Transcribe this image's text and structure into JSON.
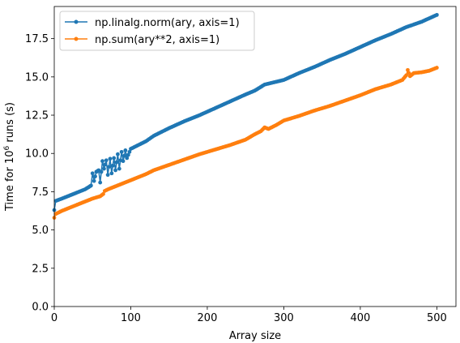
{
  "chart_data": {
    "type": "line",
    "xlabel": "Array size",
    "ylabel_main": "Time for 10",
    "ylabel_sup": "6",
    "ylabel_rest": " runs (s)",
    "xlim": [
      0,
      525
    ],
    "ylim": [
      0.0,
      19.6
    ],
    "xticks": [
      0,
      100,
      200,
      300,
      400,
      500
    ],
    "yticks": [
      0.0,
      2.5,
      5.0,
      7.5,
      10.0,
      12.5,
      15.0,
      17.5
    ],
    "ytick_labels": [
      "0.0",
      "2.5",
      "5.0",
      "7.5",
      "10.0",
      "12.5",
      "15.0",
      "17.5"
    ],
    "legend_position": "upper-left",
    "series": [
      {
        "name": "np.linalg.norm(ary, axis=1)",
        "color": "#1f77b4",
        "x": [
          0,
          2,
          10,
          20,
          30,
          40,
          45,
          48,
          50,
          52,
          55,
          58,
          60,
          63,
          65,
          68,
          70,
          73,
          75,
          78,
          80,
          83,
          85,
          88,
          90,
          93,
          95,
          100,
          110,
          120,
          130,
          140,
          150,
          170,
          190,
          210,
          230,
          250,
          262,
          275,
          300,
          320,
          340,
          360,
          380,
          400,
          420,
          440,
          460,
          480,
          500
        ],
        "y": [
          6.3,
          6.9,
          7.05,
          7.25,
          7.45,
          7.65,
          7.8,
          7.9,
          8.7,
          8.2,
          8.8,
          8.9,
          8.1,
          9.5,
          9.0,
          9.55,
          8.6,
          9.65,
          8.7,
          9.7,
          8.9,
          9.95,
          9.0,
          10.1,
          9.5,
          10.2,
          9.7,
          10.3,
          10.55,
          10.8,
          11.15,
          11.4,
          11.65,
          12.1,
          12.5,
          12.95,
          13.4,
          13.85,
          14.1,
          14.5,
          14.8,
          15.25,
          15.65,
          16.1,
          16.5,
          16.95,
          17.4,
          17.8,
          18.25,
          18.6,
          19.05
        ]
      },
      {
        "name": "np.sum(ary**2, axis=1)",
        "color": "#ff7f0e",
        "x": [
          0,
          2,
          10,
          20,
          30,
          40,
          50,
          60,
          64,
          66,
          70,
          80,
          90,
          100,
          110,
          120,
          130,
          150,
          170,
          190,
          210,
          230,
          250,
          262,
          270,
          275,
          280,
          290,
          300,
          320,
          340,
          360,
          380,
          400,
          420,
          440,
          455,
          460,
          462,
          465,
          470,
          480,
          490,
          500
        ],
        "y": [
          5.8,
          6.05,
          6.25,
          6.45,
          6.65,
          6.85,
          7.05,
          7.2,
          7.35,
          7.55,
          7.65,
          7.85,
          8.05,
          8.25,
          8.45,
          8.65,
          8.9,
          9.25,
          9.6,
          9.95,
          10.25,
          10.55,
          10.9,
          11.25,
          11.45,
          11.7,
          11.6,
          11.85,
          12.15,
          12.45,
          12.8,
          13.1,
          13.45,
          13.8,
          14.2,
          14.5,
          14.8,
          15.1,
          15.45,
          15.05,
          15.25,
          15.3,
          15.4,
          15.6
        ]
      }
    ]
  }
}
